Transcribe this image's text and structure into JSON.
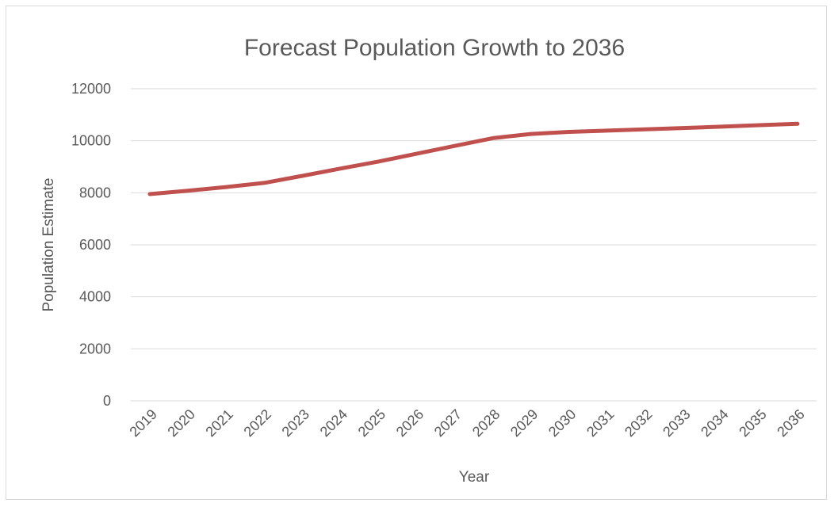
{
  "chart_data": {
    "type": "line",
    "title": "Forecast Population Growth to 2036",
    "xlabel": "Year",
    "ylabel": "Population Estimate",
    "ylim": [
      0,
      12000
    ],
    "yticks": [
      0,
      2000,
      4000,
      6000,
      8000,
      10000,
      12000
    ],
    "x": [
      "2019",
      "2020",
      "2021",
      "2022",
      "2023",
      "2024",
      "2025",
      "2026",
      "2027",
      "2028",
      "2029",
      "2030",
      "2031",
      "2032",
      "2033",
      "2034",
      "2035",
      "2036"
    ],
    "series": [
      {
        "values": [
          7950,
          8080,
          8220,
          8380,
          8650,
          8930,
          9200,
          9500,
          9800,
          10100,
          10260,
          10340,
          10390,
          10440,
          10490,
          10540,
          10600,
          10650
        ],
        "color": "#c0504d"
      }
    ],
    "grid": true,
    "legend": "none"
  }
}
